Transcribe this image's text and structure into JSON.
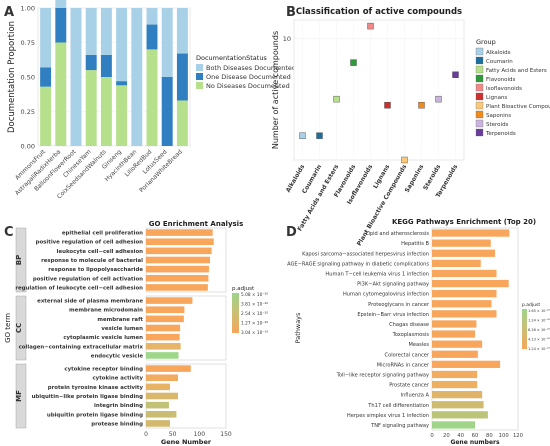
{
  "chart_data": [
    {
      "panel": "A",
      "type": "bar",
      "ylabel": "Documentation Proportion",
      "ylim": [
        0,
        1
      ],
      "yticks": [
        "0.00",
        "0.25",
        "0.50",
        "0.75",
        "1.00"
      ],
      "legend_title": "DocumentationStatus",
      "legend_position": "right",
      "categories": [
        "AmmonsFruit",
        "AstragaliRadixHerba",
        "BalloonFlowerRoot",
        "ChineseYam",
        "CoixSeedsandWalnuts",
        "Ginseng",
        "HyacinthBean",
        "LilioRedBud",
        "LotusSeed",
        "PorianaWhiteBread"
      ],
      "series": [
        {
          "name": "Both Diseases Documented",
          "color": "#a8d0e6",
          "values": [
            0.43,
            0.25,
            1.0,
            0.34,
            0.34,
            0.53,
            1.0,
            0.12,
            0.5,
            0.33
          ]
        },
        {
          "name": "One Disease Documented",
          "color": "#2f7fc1",
          "values": [
            0.14,
            0.25,
            0,
            0.11,
            0.16,
            0.03,
            0,
            0.18,
            0.5,
            0.34
          ]
        },
        {
          "name": "No Diseases Documented",
          "color": "#b6e08c",
          "values": [
            0.43,
            0.75,
            0,
            0.55,
            0.5,
            0.44,
            0,
            0.7,
            0,
            0.33
          ]
        }
      ]
    },
    {
      "panel": "B",
      "type": "scatter",
      "title": "Classification of active compounds",
      "ylabel": "Number of active compounds",
      "ytick": "10",
      "legend_title": "Group",
      "legend_position": "right",
      "categories": [
        "Alkaloids",
        "Coumarin",
        "Fatty Acids and Esters",
        "Flavonoids",
        "Isoflavonoids",
        "Lignans",
        "Plant Bioactive Compounds",
        "Saponins",
        "Steroids",
        "Terpenoids"
      ],
      "colors": [
        "#a8d0e6",
        "#1f6f9e",
        "#b6e08c",
        "#2e9a3c",
        "#f08a8a",
        "#cf2f2f",
        "#f8c97a",
        "#f08a1e",
        "#c8b4dc",
        "#6a3d9a"
      ],
      "values": [
        2,
        2,
        5,
        8,
        11,
        4.5,
        0,
        4.5,
        5,
        7
      ]
    },
    {
      "panel": "C",
      "type": "bar",
      "title": "GO Enrichment Analysis",
      "xlabel": "Gene Number",
      "ylabel": "GO term",
      "xlim": [
        0,
        150
      ],
      "xticks": [
        "0",
        "50",
        "100",
        "150"
      ],
      "legend_title": "p.adjust",
      "legend_position": "right",
      "legend_values": [
        "5.08 × 10⁻²⁰",
        "3.81 × 10⁻²⁰",
        "2.54 × 10⁻²⁰",
        "1.27 × 10⁻²⁰",
        "3.04 × 10⁻¹⁹"
      ],
      "groups": [
        {
          "name": "BP",
          "terms": [
            "epithelial cell proliferation",
            "positive regulation of cell adhesion",
            "leukocyte cell−cell adhesion",
            "response to molecule of bacterial",
            "response to lipopolysaccharide",
            "positive regulation of cell activation",
            "regulation of leukocyte cell−cell adhesion"
          ],
          "values": [
            125,
            127,
            123,
            120,
            118,
            117,
            116
          ],
          "colors": [
            "#f7a65c",
            "#f7a65c",
            "#f7a65c",
            "#f7a65c",
            "#f7a65c",
            "#f7a65c",
            "#f7a65c"
          ]
        },
        {
          "name": "CC",
          "terms": [
            "external side of plasma membrane",
            "membrane microdomain",
            "membrane raft",
            "vesicle lumen",
            "cytoplasmic vesicle lumen",
            "collagen−containing extracellular matrix",
            "endocytic vesicle"
          ],
          "values": [
            87,
            72,
            71,
            64,
            63,
            65,
            61
          ],
          "colors": [
            "#f7a65c",
            "#f7a65c",
            "#f7a65c",
            "#f7a65c",
            "#f7a65c",
            "#e6b56a",
            "#9ed68a"
          ]
        },
        {
          "name": "MF",
          "terms": [
            "cytokine receptor binding",
            "cytokine activity",
            "protein tyrosine kinase activity",
            "ubiquitin−like protein ligase binding",
            "integrin binding",
            "ubiquitin protein ligase binding",
            "protease binding"
          ],
          "values": [
            84,
            60,
            45,
            60,
            43,
            57,
            45
          ],
          "colors": [
            "#f7a65c",
            "#f2ac60",
            "#e9b366",
            "#d9b86c",
            "#c2c276",
            "#c8bd72",
            "#d2b96e"
          ]
        }
      ]
    },
    {
      "panel": "D",
      "type": "bar",
      "title": "KEGG Pathways Enrichment (Top 20)",
      "xlabel": "Gene numbers",
      "ylabel": "Pathways",
      "xlim": [
        0,
        120
      ],
      "xticks": [
        "0",
        "20",
        "40",
        "60",
        "80",
        "100",
        "120"
      ],
      "legend_title": "p.adjust",
      "legend_position": "right",
      "legend_values": [
        "1.65 × 10⁻²⁰",
        "1.24 × 10⁻²⁰",
        "8.26 × 10⁻²⁰",
        "4.13 × 10⁻²⁰",
        "1.24 × 10⁻²⁰"
      ],
      "categories": [
        "Lipid and atherosclerosis",
        "Hepatitis B",
        "Kaposi sarcoma−associated herpesvirus infection",
        "AGE−RAGE signaling pathway in diabetic complications",
        "Human T−cell leukemia virus 1 infection",
        "PI3K−Akt signaling pathway",
        "Human cytomegalovirus infection",
        "Proteoglycans in cancer",
        "Epstein−Barr virus infection",
        "Chagas disease",
        "Toxoplasmosis",
        "Measles",
        "Colorectal cancer",
        "MicroRNAs in cancer",
        "Toll−like receptor signaling pathway",
        "Prostate cancer",
        "Influenza A",
        "Th17 cell differentiation",
        "Herpes simplex virus 1 infection",
        "TNF signaling pathway"
      ],
      "values": [
        108,
        82,
        88,
        68,
        90,
        107,
        90,
        83,
        90,
        62,
        60,
        70,
        64,
        95,
        63,
        63,
        70,
        72,
        78,
        60
      ],
      "colors": [
        "#f7a65c",
        "#f7a65c",
        "#f7a65c",
        "#f7a65c",
        "#f7a65c",
        "#f7a65c",
        "#f7a65c",
        "#f7a65c",
        "#f7a65c",
        "#f7a65c",
        "#f7a65c",
        "#f7a65c",
        "#f7a65c",
        "#f7a65c",
        "#f2ac60",
        "#edb063",
        "#e0b468",
        "#cfbb70",
        "#bcc478",
        "#a0d488"
      ]
    }
  ]
}
